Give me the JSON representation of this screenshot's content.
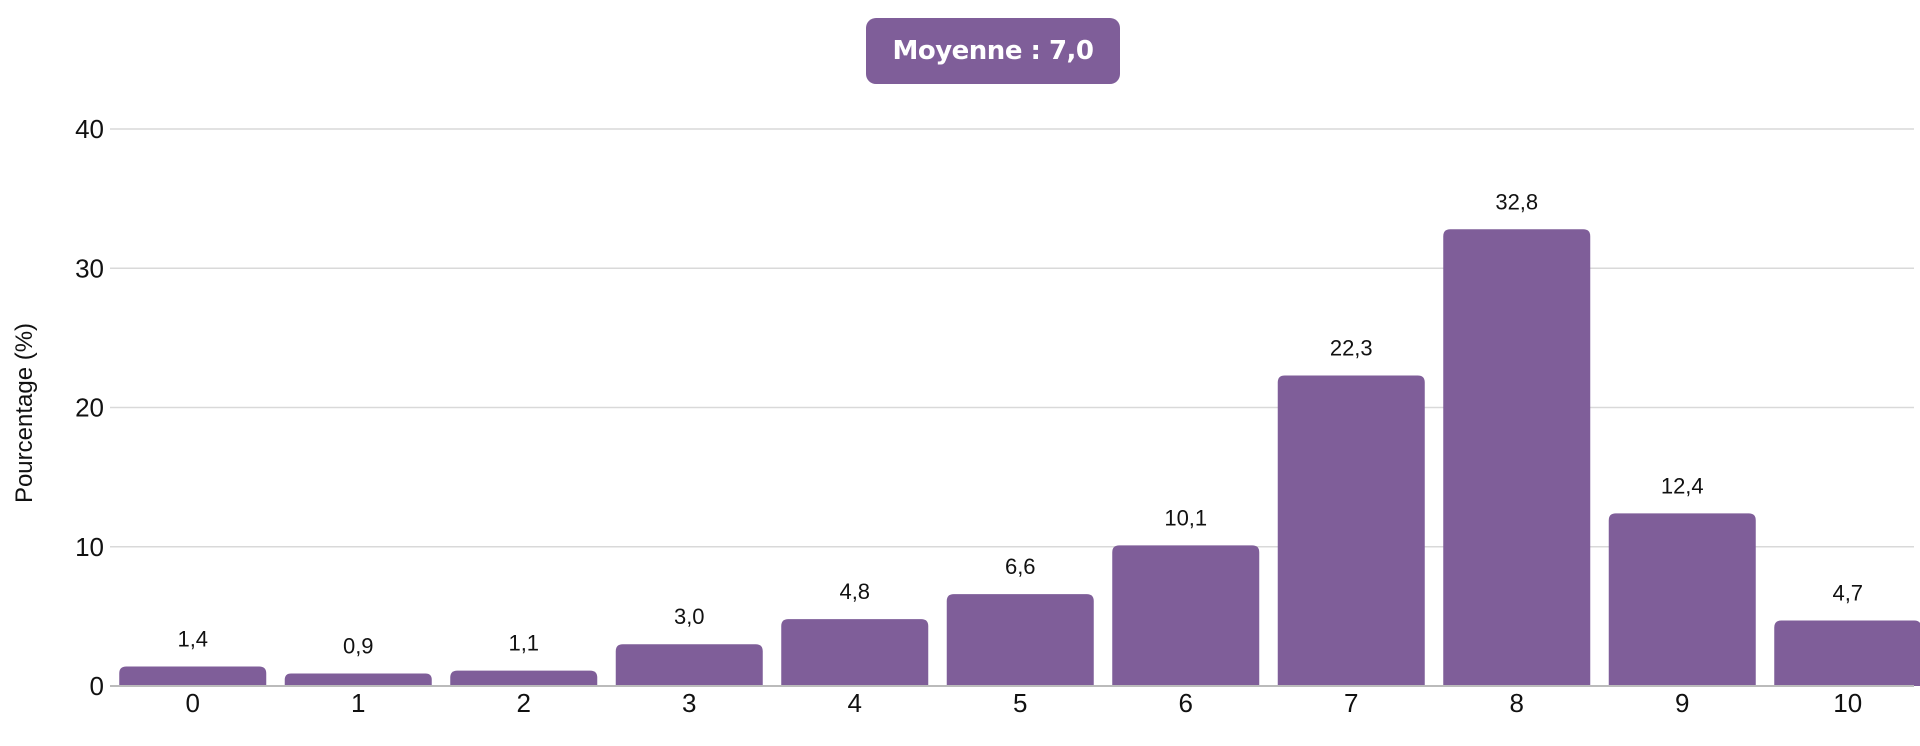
{
  "badge": {
    "text": "Moyenne : 7,0"
  },
  "colors": {
    "bar": "#7f5e99",
    "grid": "#d9d9d9",
    "axis": "#333333",
    "text": "#111111",
    "badge_bg": "#7f5e99"
  },
  "chart_data": {
    "type": "bar",
    "title": "",
    "xlabel": "",
    "ylabel": "Pourcentage (%)",
    "categories": [
      "0",
      "1",
      "2",
      "3",
      "4",
      "5",
      "6",
      "7",
      "8",
      "9",
      "10"
    ],
    "values": [
      1.4,
      0.9,
      1.1,
      3.0,
      4.8,
      6.6,
      10.1,
      22.3,
      32.8,
      12.4,
      4.7
    ],
    "value_labels": [
      "1,4",
      "0,9",
      "1,1",
      "3,0",
      "4,8",
      "6,6",
      "10,1",
      "22,3",
      "32,8",
      "12,4",
      "4,7"
    ],
    "ylim": [
      0,
      40
    ],
    "yticks": [
      0,
      10,
      20,
      30,
      40
    ],
    "ytick_labels": [
      "0",
      "10",
      "20",
      "30",
      "40"
    ],
    "grid": true,
    "legend": "none"
  }
}
